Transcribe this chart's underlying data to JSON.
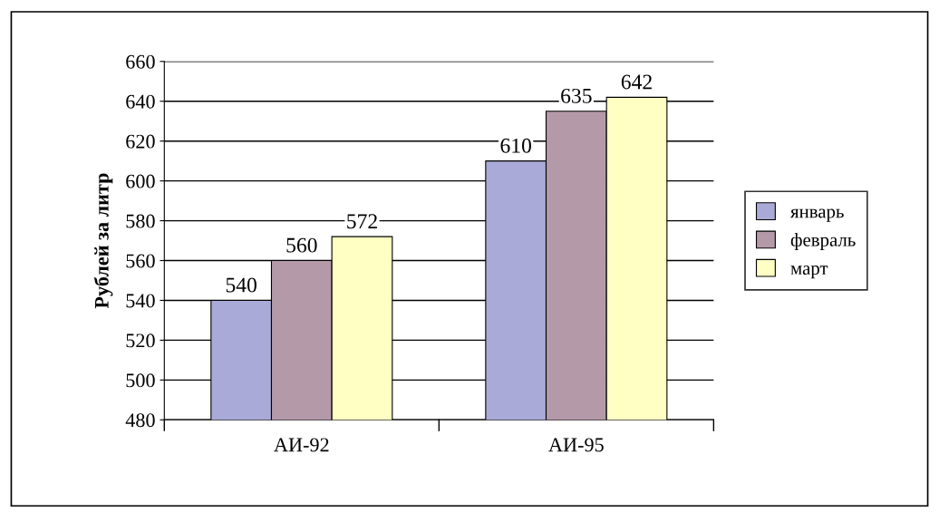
{
  "chart_data": {
    "type": "bar",
    "ylabel": "Рублей за литр",
    "categories": [
      "АИ-92",
      "АИ-95"
    ],
    "series": [
      {
        "name": "январь",
        "color": "#aaaad8",
        "values": [
          540,
          610
        ]
      },
      {
        "name": "февраль",
        "color": "#b49aa8",
        "values": [
          560,
          635
        ]
      },
      {
        "name": "март",
        "color": "#ffffc4",
        "values": [
          572,
          642
        ]
      }
    ],
    "ylim": [
      480,
      660
    ],
    "yticks": [
      480,
      500,
      520,
      540,
      560,
      580,
      600,
      620,
      640,
      660
    ],
    "grid": "y",
    "legend": "right",
    "data_labels": true
  }
}
